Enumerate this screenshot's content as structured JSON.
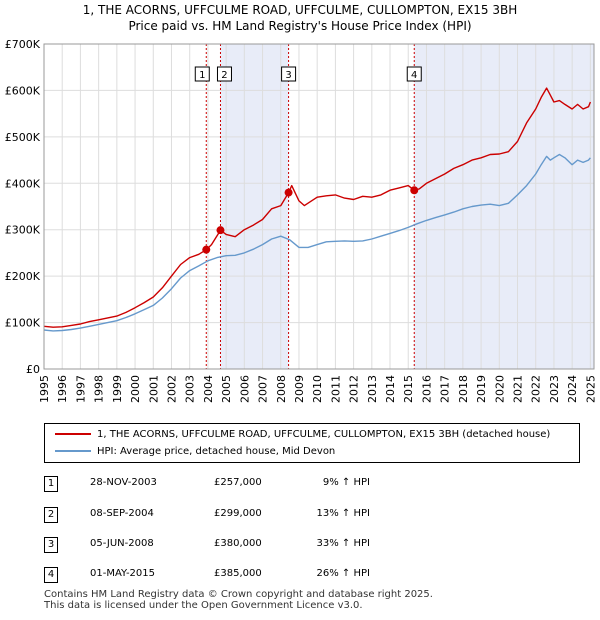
{
  "chart_data": {
    "type": "line",
    "title": "1, THE ACORNS, UFFCULME ROAD, UFFCULME, CULLOMPTON, EX15 3BH",
    "subtitle": "Price paid vs. HM Land Registry's House Price Index (HPI)",
    "xlabel": "",
    "ylabel": "",
    "xlim": [
      1995,
      2025.2
    ],
    "ylim": [
      0,
      700000
    ],
    "yticks": [
      0,
      100000,
      200000,
      300000,
      400000,
      500000,
      600000,
      700000
    ],
    "ytick_labels": [
      "£0",
      "£100K",
      "£200K",
      "£300K",
      "£400K",
      "£500K",
      "£600K",
      "£700K"
    ],
    "xticks": [
      1995,
      1996,
      1997,
      1998,
      1999,
      2000,
      2001,
      2002,
      2003,
      2004,
      2005,
      2006,
      2007,
      2008,
      2009,
      2010,
      2011,
      2012,
      2013,
      2014,
      2015,
      2016,
      2017,
      2018,
      2019,
      2020,
      2021,
      2022,
      2023,
      2024,
      2025
    ],
    "xtick_labels": [
      "1995",
      "1996",
      "1997",
      "1998",
      "1999",
      "2000",
      "2001",
      "2002",
      "2003",
      "2004",
      "2005",
      "2006",
      "2007",
      "2008",
      "2009",
      "2010",
      "2011",
      "2012",
      "2013",
      "2014",
      "2015",
      "2016",
      "2017",
      "2018",
      "2019",
      "2020",
      "2021",
      "2022",
      "2023",
      "2024",
      "2025"
    ],
    "grid": true,
    "series": [
      {
        "name": "1, THE ACORNS, UFFCULME ROAD, UFFCULME, CULLOMPTON, EX15 3BH (detached house)",
        "color": "#cc0000",
        "x": [
          1995,
          1995.5,
          1996,
          1996.5,
          1997,
          1997.5,
          1998,
          1998.5,
          1999,
          1999.5,
          2000,
          2000.5,
          2001,
          2001.5,
          2002,
          2002.5,
          2003,
          2003.5,
          2003.91,
          2004.2,
          2004.69,
          2005,
          2005.5,
          2006,
          2006.5,
          2007,
          2007.5,
          2008,
          2008.43,
          2008.6,
          2009,
          2009.3,
          2009.6,
          2010,
          2010.5,
          2011,
          2011.5,
          2012,
          2012.5,
          2013,
          2013.5,
          2014,
          2014.5,
          2015,
          2015.33,
          2015.6,
          2016,
          2016.5,
          2017,
          2017.5,
          2018,
          2018.5,
          2019,
          2019.5,
          2020,
          2020.5,
          2021,
          2021.5,
          2022,
          2022.3,
          2022.6,
          2022.8,
          2023,
          2023.3,
          2023.6,
          2024,
          2024.3,
          2024.6,
          2024.9,
          2025
        ],
        "values": [
          92000,
          90000,
          91000,
          94000,
          97000,
          102000,
          106000,
          110000,
          114000,
          122000,
          132000,
          143000,
          155000,
          175000,
          200000,
          225000,
          240000,
          247000,
          257000,
          268000,
          299000,
          290000,
          285000,
          300000,
          310000,
          322000,
          345000,
          352000,
          380000,
          395000,
          362000,
          352000,
          360000,
          370000,
          373000,
          375000,
          368000,
          365000,
          372000,
          370000,
          375000,
          385000,
          390000,
          395000,
          385000,
          388000,
          400000,
          410000,
          420000,
          432000,
          440000,
          450000,
          455000,
          462000,
          463000,
          468000,
          490000,
          530000,
          560000,
          585000,
          605000,
          590000,
          575000,
          578000,
          570000,
          560000,
          570000,
          560000,
          565000,
          575000
        ]
      },
      {
        "name": "HPI: Average price, detached house, Mid Devon",
        "color": "#6699cc",
        "x": [
          1995,
          1995.5,
          1996,
          1996.5,
          1997,
          1997.5,
          1998,
          1998.5,
          1999,
          1999.5,
          2000,
          2000.5,
          2001,
          2001.5,
          2002,
          2002.5,
          2003,
          2003.5,
          2004,
          2004.5,
          2005,
          2005.5,
          2006,
          2006.5,
          2007,
          2007.5,
          2008,
          2008.5,
          2009,
          2009.5,
          2010,
          2010.5,
          2011,
          2011.5,
          2012,
          2012.5,
          2013,
          2013.5,
          2014,
          2014.5,
          2015,
          2015.5,
          2016,
          2016.5,
          2017,
          2017.5,
          2018,
          2018.5,
          2019,
          2019.5,
          2020,
          2020.5,
          2021,
          2021.5,
          2022,
          2022.3,
          2022.6,
          2022.8,
          2023,
          2023.3,
          2023.6,
          2024,
          2024.3,
          2024.6,
          2024.9,
          2025
        ],
        "values": [
          84000,
          82000,
          83000,
          85000,
          88000,
          92000,
          96000,
          100000,
          104000,
          111000,
          119000,
          128000,
          137000,
          153000,
          173000,
          196000,
          212000,
          222000,
          233000,
          240000,
          244000,
          245000,
          250000,
          258000,
          268000,
          280000,
          286000,
          278000,
          262000,
          262000,
          268000,
          274000,
          275000,
          276000,
          275000,
          276000,
          280000,
          286000,
          292000,
          298000,
          305000,
          313000,
          320000,
          326000,
          332000,
          338000,
          345000,
          350000,
          353000,
          355000,
          352000,
          357000,
          375000,
          395000,
          420000,
          440000,
          458000,
          450000,
          455000,
          462000,
          455000,
          440000,
          450000,
          445000,
          450000,
          455000
        ]
      }
    ],
    "sales": [
      {
        "id": "1",
        "date": "28-NOV-2003",
        "x": 2003.91,
        "price": 257000,
        "price_label": "£257,000",
        "hpi": "9% ↑ HPI"
      },
      {
        "id": "2",
        "date": "08-SEP-2004",
        "x": 2004.69,
        "price": 299000,
        "price_label": "£299,000",
        "hpi": "13% ↑ HPI"
      },
      {
        "id": "3",
        "date": "05-JUN-2008",
        "x": 2008.43,
        "price": 380000,
        "price_label": "£380,000",
        "hpi": "33% ↑ HPI"
      },
      {
        "id": "4",
        "date": "01-MAY-2015",
        "x": 2015.33,
        "price": 385000,
        "price_label": "£385,000",
        "hpi": "26% ↑ HPI"
      }
    ],
    "shaded_ranges": [
      [
        2004.69,
        2008.43
      ],
      [
        2015.33,
        2025.2
      ]
    ],
    "colors": {
      "shade": "#e8ecf8",
      "vline": "#cc0000",
      "grid": "#dddddd"
    }
  },
  "legend": {
    "property_label": "1, THE ACORNS, UFFCULME ROAD, UFFCULME, CULLOMPTON, EX15 3BH (detached house)",
    "hpi_label": "HPI: Average price, detached house, Mid Devon"
  },
  "footer": {
    "line1": "Contains HM Land Registry data © Crown copyright and database right 2025.",
    "line2": "This data is licensed under the Open Government Licence v3.0."
  }
}
